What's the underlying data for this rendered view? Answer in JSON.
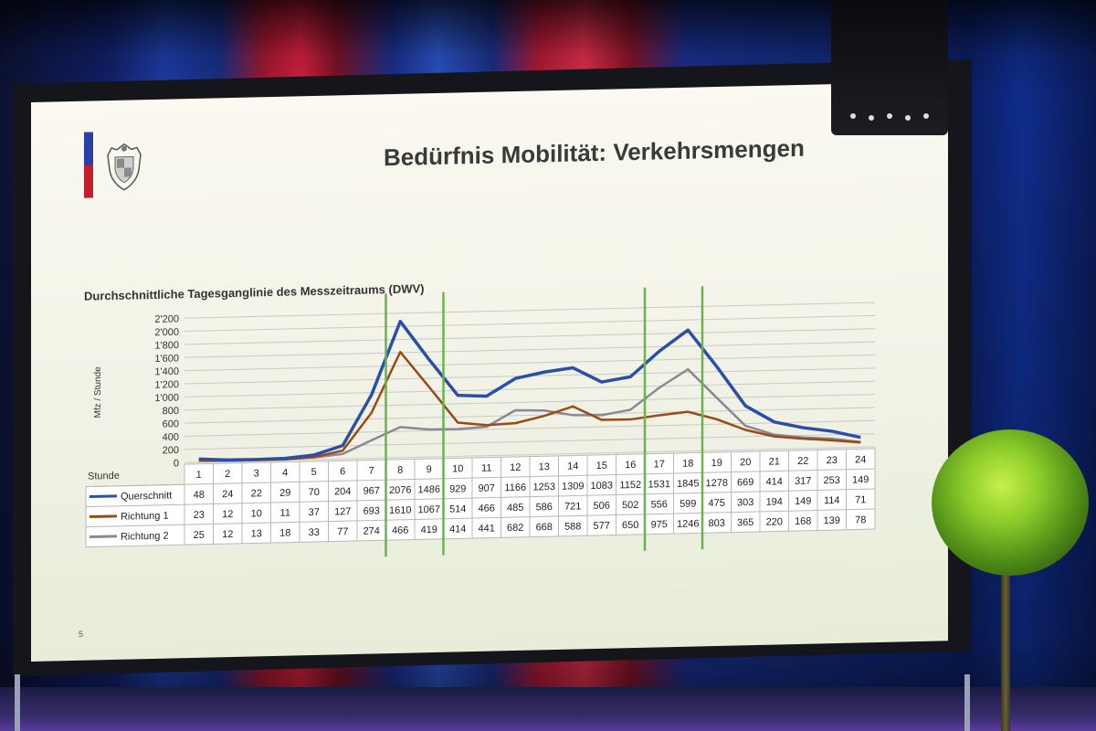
{
  "slide": {
    "title": "Bedürfnis Mobilität: Verkehrsmengen",
    "page_number": "5"
  },
  "chart_data": {
    "type": "line",
    "title": "Durchschnittliche Tagesganglinie des Messzeitraums (DWV)",
    "ylabel": "Mfz / Stunde",
    "xlabel": "Stunde",
    "ylim": [
      0,
      2200
    ],
    "yticks": [
      "0",
      "200",
      "400",
      "600",
      "800",
      "1'000",
      "1'200",
      "1'400",
      "1'600",
      "1'800",
      "2'000",
      "2'200"
    ],
    "grid": true,
    "categories": [
      "1",
      "2",
      "3",
      "4",
      "5",
      "6",
      "7",
      "8",
      "9",
      "10",
      "11",
      "12",
      "13",
      "14",
      "15",
      "16",
      "17",
      "18",
      "19",
      "20",
      "21",
      "22",
      "23",
      "24"
    ],
    "series": [
      {
        "name": "Querschnitt",
        "color": "#2a4fa8",
        "values": [
          48,
          24,
          22,
          29,
          70,
          204,
          967,
          2076,
          1486,
          929,
          907,
          1166,
          1253,
          1309,
          1083,
          1152,
          1531,
          1845,
          1278,
          669,
          414,
          317,
          253,
          149
        ]
      },
      {
        "name": "Richtung 1",
        "color": "#9a4a14",
        "values": [
          23,
          12,
          10,
          11,
          37,
          127,
          693,
          1610,
          1067,
          514,
          466,
          485,
          586,
          721,
          506,
          502,
          556,
          599,
          475,
          303,
          194,
          149,
          114,
          71
        ]
      },
      {
        "name": "Richtung 2",
        "color": "#8a8796",
        "values": [
          25,
          12,
          13,
          18,
          33,
          77,
          274,
          466,
          419,
          414,
          441,
          682,
          668,
          588,
          577,
          650,
          975,
          1246,
          803,
          365,
          220,
          168,
          139,
          78
        ]
      }
    ],
    "marker_lines_after_categories": [
      "7",
      "9",
      "16",
      "18"
    ],
    "marker_line_color": "#6cb24f"
  }
}
